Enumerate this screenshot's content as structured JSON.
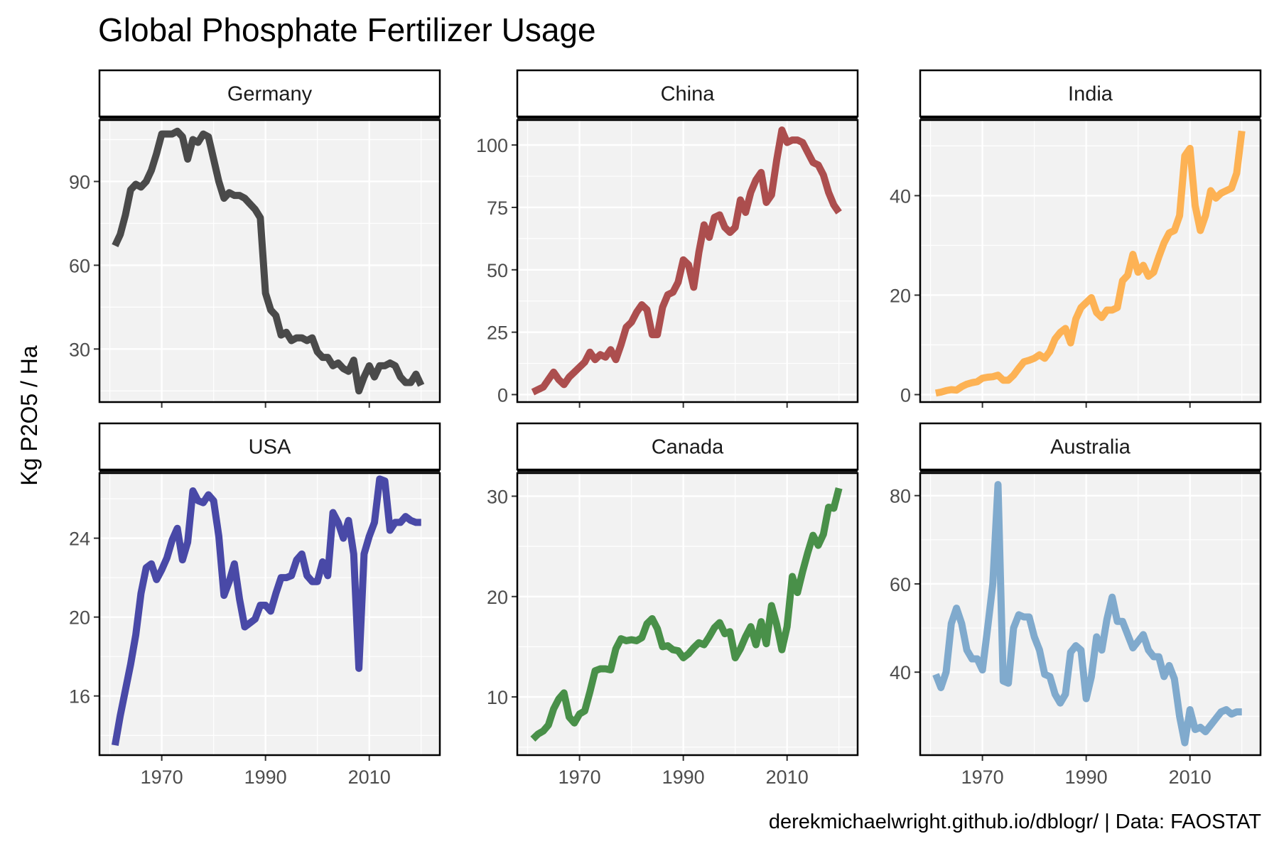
{
  "title": "Global Phosphate Fertilizer Usage",
  "ylabel": "Kg P2O5 / Ha",
  "caption": "derekmichaelwright.github.io/dblogr/ | Data: FAOSTAT",
  "chart_data": [
    {
      "type": "line",
      "title": "Germany",
      "color": "#404040",
      "x": [
        1961,
        1962,
        1963,
        1964,
        1965,
        1966,
        1967,
        1968,
        1969,
        1970,
        1971,
        1972,
        1973,
        1974,
        1975,
        1976,
        1977,
        1978,
        1979,
        1980,
        1981,
        1982,
        1983,
        1984,
        1985,
        1986,
        1987,
        1988,
        1989,
        1990,
        1991,
        1992,
        1993,
        1994,
        1995,
        1996,
        1997,
        1998,
        1999,
        2000,
        2001,
        2002,
        2003,
        2004,
        2005,
        2006,
        2007,
        2008,
        2009,
        2010,
        2011,
        2012,
        2013,
        2014,
        2015,
        2016,
        2017,
        2018,
        2019,
        2020
      ],
      "values": [
        67,
        71,
        78,
        87,
        89,
        88,
        90,
        94,
        100,
        107,
        107,
        107,
        108,
        106,
        98,
        105,
        104,
        107,
        106,
        98,
        90,
        84,
        86,
        85,
        85,
        84,
        82,
        80,
        77,
        50,
        44,
        42,
        35,
        36,
        33,
        34,
        34,
        33,
        34,
        29,
        27,
        27,
        24,
        25,
        23,
        22,
        26,
        15,
        20,
        24,
        20,
        24,
        24,
        25,
        24,
        20,
        18,
        18,
        21,
        17
      ],
      "xlim": [
        1958,
        2023.6
      ],
      "xticks": [
        1970,
        1990,
        2010
      ],
      "ylim": [
        11,
        112
      ],
      "yticks": [
        30,
        60,
        90
      ],
      "grid": true
    },
    {
      "type": "line",
      "title": "China",
      "color": "#a84444",
      "x": [
        1961,
        1962,
        1963,
        1964,
        1965,
        1966,
        1967,
        1968,
        1969,
        1970,
        1971,
        1972,
        1973,
        1974,
        1975,
        1976,
        1977,
        1978,
        1979,
        1980,
        1981,
        1982,
        1983,
        1984,
        1985,
        1986,
        1987,
        1988,
        1989,
        1990,
        1991,
        1992,
        1993,
        1994,
        1995,
        1996,
        1997,
        1998,
        1999,
        2000,
        2001,
        2002,
        2003,
        2004,
        2005,
        2006,
        2007,
        2008,
        2009,
        2010,
        2011,
        2012,
        2013,
        2014,
        2015,
        2016,
        2017,
        2018,
        2019,
        2020
      ],
      "values": [
        1,
        2,
        3,
        6,
        9,
        6,
        4,
        7,
        9,
        11,
        13,
        17,
        14,
        16,
        15,
        18,
        14,
        20,
        27,
        29,
        33,
        36,
        34,
        24,
        24,
        35,
        40,
        41,
        45,
        54,
        52,
        43,
        57,
        68,
        63,
        71,
        72,
        67,
        65,
        67,
        78,
        73,
        81,
        86,
        89,
        77,
        80,
        94,
        106,
        101,
        102,
        102,
        101,
        97,
        93,
        92,
        88,
        81,
        76,
        73
      ],
      "xlim": [
        1958,
        2023.6
      ],
      "xticks": [
        1970,
        1990,
        2010
      ],
      "ylim": [
        -3,
        110
      ],
      "yticks": [
        0,
        25,
        50,
        75,
        100
      ],
      "grid": true
    },
    {
      "type": "line",
      "title": "India",
      "color": "#fdae4b",
      "x": [
        1961,
        1962,
        1963,
        1964,
        1965,
        1966,
        1967,
        1968,
        1969,
        1970,
        1971,
        1972,
        1973,
        1974,
        1975,
        1976,
        1977,
        1978,
        1979,
        1980,
        1981,
        1982,
        1983,
        1984,
        1985,
        1986,
        1987,
        1988,
        1989,
        1990,
        1991,
        1992,
        1993,
        1994,
        1995,
        1996,
        1997,
        1998,
        1999,
        2000,
        2001,
        2002,
        2003,
        2004,
        2005,
        2006,
        2007,
        2008,
        2009,
        2010,
        2011,
        2012,
        2013,
        2014,
        2015,
        2016,
        2017,
        2018,
        2019,
        2020
      ],
      "values": [
        0.3,
        0.5,
        0.8,
        1.0,
        0.9,
        1.6,
        2.1,
        2.4,
        2.6,
        3.3,
        3.5,
        3.6,
        3.9,
        2.9,
        2.9,
        3.9,
        5.3,
        6.6,
        6.9,
        7.3,
        8.0,
        7.3,
        8.7,
        11.2,
        12.5,
        13.3,
        10.4,
        15.2,
        17.5,
        18.5,
        19.5,
        16.5,
        15.5,
        17.0,
        17.0,
        17.5,
        22.9,
        24.0,
        28.2,
        24.6,
        26.0,
        23.8,
        24.6,
        27.7,
        30.5,
        32.5,
        33.0,
        36.0,
        48.0,
        49.5,
        38.0,
        33.0,
        36.0,
        41.0,
        39.5,
        40.5,
        41.0,
        41.5,
        44.5,
        53.0
      ],
      "xlim": [
        1958,
        2023.6
      ],
      "xticks": [
        1970,
        1990,
        2010
      ],
      "ylim": [
        -1.5,
        55.2
      ],
      "yticks": [
        0,
        20,
        40
      ],
      "grid": true
    },
    {
      "type": "line",
      "title": "USA",
      "color": "#3f3fa2",
      "x": [
        1961,
        1962,
        1963,
        1964,
        1965,
        1966,
        1967,
        1968,
        1969,
        1970,
        1971,
        1972,
        1973,
        1974,
        1975,
        1976,
        1977,
        1978,
        1979,
        1980,
        1981,
        1982,
        1983,
        1984,
        1985,
        1986,
        1987,
        1988,
        1989,
        1990,
        1991,
        1992,
        1993,
        1994,
        1995,
        1996,
        1997,
        1998,
        1999,
        2000,
        2001,
        2002,
        2003,
        2004,
        2005,
        2006,
        2007,
        2008,
        2009,
        2010,
        2011,
        2012,
        2013,
        2014,
        2015,
        2016,
        2017,
        2018,
        2019,
        2020
      ],
      "values": [
        13.5,
        15.0,
        16.3,
        17.6,
        19.1,
        21.2,
        22.5,
        22.7,
        21.9,
        22.4,
        23.0,
        23.9,
        24.5,
        22.9,
        23.8,
        26.4,
        25.9,
        25.8,
        26.2,
        25.9,
        24.1,
        21.1,
        21.8,
        22.7,
        20.9,
        19.5,
        19.7,
        19.9,
        20.6,
        20.6,
        20.3,
        21.2,
        22.0,
        22.0,
        22.1,
        22.9,
        23.2,
        22.1,
        21.8,
        21.8,
        22.8,
        22.1,
        25.3,
        24.8,
        24.0,
        24.9,
        23.2,
        17.4,
        23.2,
        24.1,
        24.8,
        27.0,
        26.9,
        24.4,
        24.8,
        24.8,
        25.1,
        24.9,
        24.8,
        24.8
      ],
      "xlim": [
        1958,
        2023.6
      ],
      "xticks": [
        1970,
        1990,
        2010
      ],
      "ylim": [
        13,
        27.3
      ],
      "yticks": [
        16,
        20,
        24
      ],
      "grid": true
    },
    {
      "type": "line",
      "title": "Canada",
      "color": "#3f8a3f",
      "x": [
        1961,
        1962,
        1963,
        1964,
        1965,
        1966,
        1967,
        1968,
        1969,
        1970,
        1971,
        1972,
        1973,
        1974,
        1975,
        1976,
        1977,
        1978,
        1979,
        1980,
        1981,
        1982,
        1983,
        1984,
        1985,
        1986,
        1987,
        1988,
        1989,
        1990,
        1991,
        1992,
        1993,
        1994,
        1995,
        1996,
        1997,
        1998,
        1999,
        2000,
        2001,
        2002,
        2003,
        2004,
        2005,
        2006,
        2007,
        2008,
        2009,
        2010,
        2011,
        2012,
        2013,
        2014,
        2015,
        2016,
        2017,
        2018,
        2019,
        2020
      ],
      "values": [
        5.8,
        6.3,
        6.6,
        7.2,
        8.8,
        9.8,
        10.4,
        8.0,
        7.4,
        8.3,
        8.6,
        10.5,
        12.6,
        12.8,
        12.8,
        12.7,
        14.8,
        15.8,
        15.6,
        15.7,
        15.6,
        15.9,
        17.3,
        17.8,
        16.8,
        15.0,
        15.1,
        14.7,
        14.6,
        13.9,
        14.3,
        14.9,
        15.4,
        15.2,
        16.0,
        16.9,
        17.4,
        16.3,
        16.5,
        13.9,
        14.8,
        16.0,
        17.0,
        15.2,
        17.5,
        15.3,
        19.1,
        17.2,
        14.7,
        17.0,
        22.0,
        20.4,
        22.5,
        24.4,
        26.1,
        25.1,
        26.2,
        28.9,
        28.8,
        30.8
      ],
      "xlim": [
        1958,
        2023.6
      ],
      "xticks": [
        1970,
        1990,
        2010
      ],
      "ylim": [
        4.2,
        32.3
      ],
      "yticks": [
        10,
        20,
        30
      ],
      "grid": true
    },
    {
      "type": "line",
      "title": "Australia",
      "color": "#79a5ca",
      "x": [
        1961,
        1962,
        1963,
        1964,
        1965,
        1966,
        1967,
        1968,
        1969,
        1970,
        1971,
        1972,
        1973,
        1974,
        1975,
        1976,
        1977,
        1978,
        1979,
        1980,
        1981,
        1982,
        1983,
        1984,
        1985,
        1986,
        1987,
        1988,
        1989,
        1990,
        1991,
        1992,
        1993,
        1994,
        1995,
        1996,
        1997,
        1998,
        1999,
        2000,
        2001,
        2002,
        2003,
        2004,
        2005,
        2006,
        2007,
        2008,
        2009,
        2010,
        2011,
        2012,
        2013,
        2014,
        2015,
        2016,
        2017,
        2018,
        2019,
        2020
      ],
      "values": [
        39.5,
        36.5,
        40,
        51,
        54.5,
        51,
        45,
        43,
        43,
        40.5,
        50,
        60,
        82.5,
        38,
        37.5,
        50,
        53,
        52.5,
        52.5,
        48,
        45,
        39.5,
        39,
        35,
        33,
        35,
        44.5,
        46,
        45,
        34,
        39,
        48,
        45,
        52,
        57,
        51.5,
        51.5,
        48.5,
        45.5,
        47,
        48.5,
        45,
        43.5,
        43.5,
        39,
        41.5,
        38.5,
        30,
        24,
        31.5,
        27,
        27.5,
        26.5,
        28,
        29.5,
        31,
        31.5,
        30.5,
        31,
        31
      ],
      "xlim": [
        1958,
        2023.6
      ],
      "xticks": [
        1970,
        1990,
        2010
      ],
      "ylim": [
        21.2,
        85.1
      ],
      "yticks": [
        40,
        60,
        80
      ],
      "grid": true
    }
  ]
}
